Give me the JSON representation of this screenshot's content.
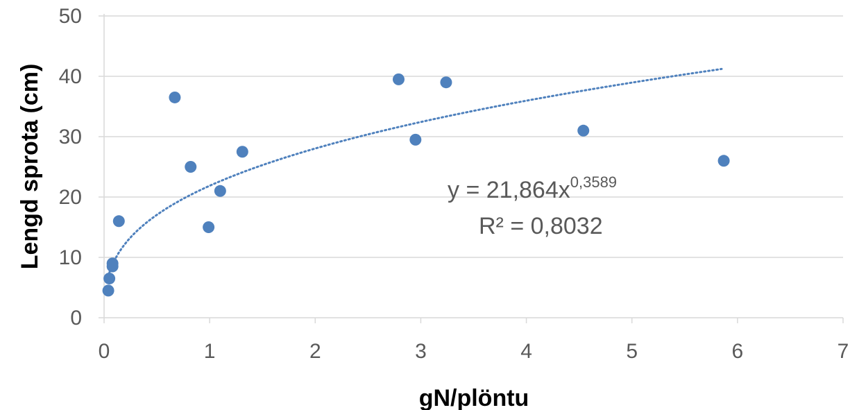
{
  "chart_data": {
    "type": "scatter",
    "xlabel": "gN/plöntu",
    "ylabel": "Lengd sprota (cm)",
    "xlim": [
      0,
      7
    ],
    "ylim": [
      0,
      50
    ],
    "x_ticks": [
      "0",
      "1",
      "2",
      "3",
      "4",
      "5",
      "6",
      "7"
    ],
    "y_ticks": [
      "0",
      "10",
      "20",
      "30",
      "40",
      "50"
    ],
    "grid": "horizontal",
    "legend": "none",
    "marker_color": "#4f81bd",
    "trendline_color": "#4f81bd",
    "series": [
      {
        "points": [
          {
            "x": 0.04,
            "y": 4.5
          },
          {
            "x": 0.05,
            "y": 6.5
          },
          {
            "x": 0.08,
            "y": 8.5
          },
          {
            "x": 0.08,
            "y": 9.0
          },
          {
            "x": 0.14,
            "y": 16.0
          },
          {
            "x": 0.67,
            "y": 36.5
          },
          {
            "x": 0.82,
            "y": 25.0
          },
          {
            "x": 0.99,
            "y": 15.0
          },
          {
            "x": 1.1,
            "y": 21.0
          },
          {
            "x": 1.31,
            "y": 27.5
          },
          {
            "x": 2.79,
            "y": 39.5
          },
          {
            "x": 2.95,
            "y": 29.5
          },
          {
            "x": 3.24,
            "y": 39.0
          },
          {
            "x": 4.54,
            "y": 31.0
          },
          {
            "x": 5.87,
            "y": 26.0
          }
        ]
      }
    ],
    "trendline": {
      "type": "power",
      "coefficient": 21.864,
      "exponent": 0.3589,
      "x_range": [
        0.05,
        5.85
      ],
      "equation_base": "y = 21,864x",
      "equation_exponent": "0,3589",
      "r_squared_label": "R² = 0,8032"
    }
  }
}
